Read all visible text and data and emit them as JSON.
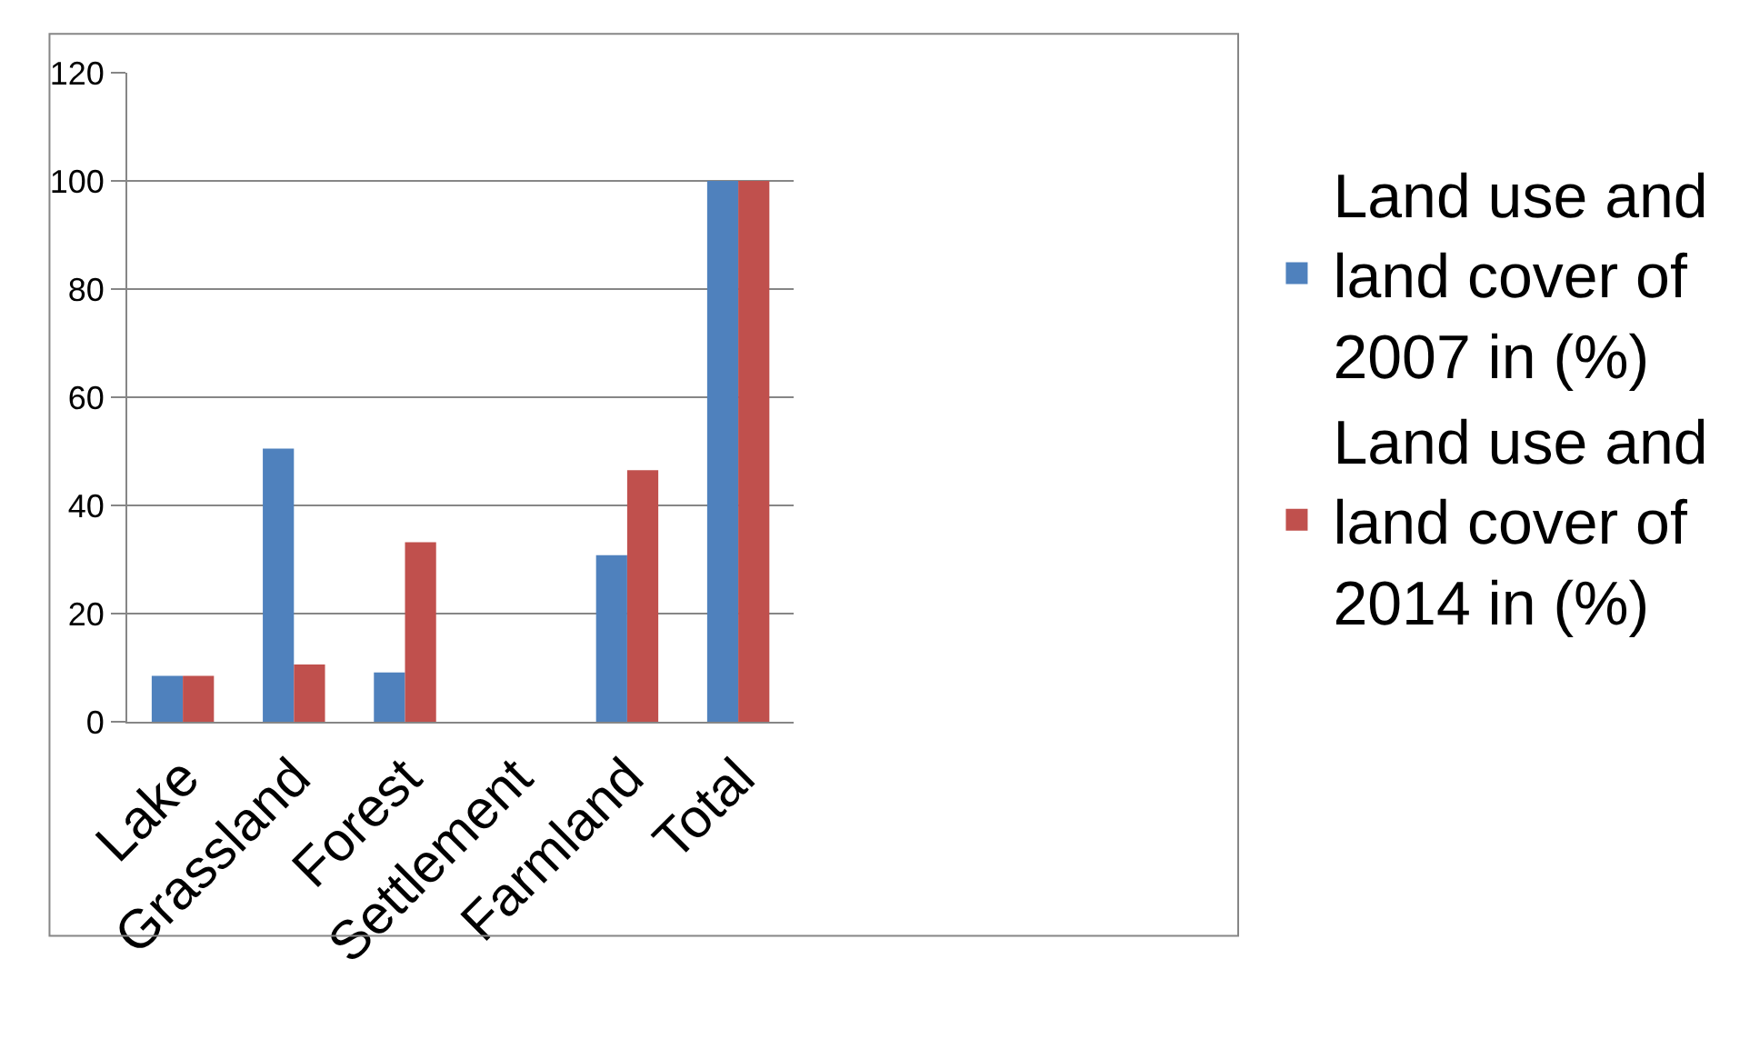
{
  "chart_data": {
    "type": "bar",
    "categories": [
      "Lake",
      "Grassland",
      "Forest",
      "Settlement",
      "Farmland",
      "Total"
    ],
    "series": [
      {
        "name": "Land use and land cover of 2007 in (%)",
        "color": "#4f81bd",
        "values": [
          8.5,
          50.5,
          9.1,
          null,
          30.8,
          100
        ]
      },
      {
        "name": "Land use and land cover of 2014 in (%)",
        "color": "#c0504d",
        "values": [
          8.5,
          10.6,
          33.2,
          null,
          46.5,
          100
        ]
      }
    ],
    "ylim": [
      0,
      120
    ],
    "yticks": [
      0,
      20,
      40,
      60,
      80,
      100,
      120
    ],
    "grid": "y",
    "legend": "right"
  }
}
